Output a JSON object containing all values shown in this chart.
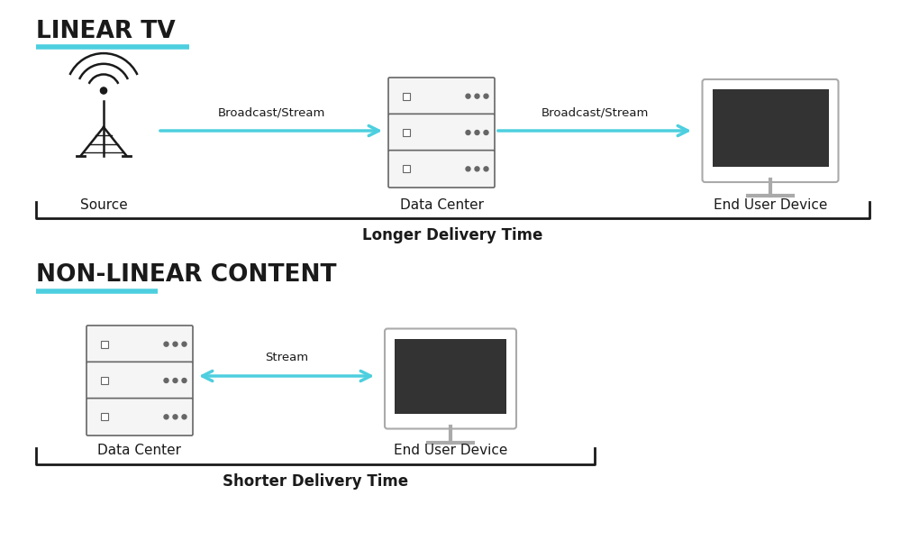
{
  "bg_color": "#ffffff",
  "cyan_color": "#4dcfdf",
  "dark_color": "#1a1a1a",
  "border_color": "#777777",
  "screen_dark": "#333333",
  "section1_title": "LINEAR TV",
  "section2_title": "NON-LINEAR CONTENT",
  "arrow1_label": "Broadcast/Stream",
  "arrow2_label": "Broadcast/Stream",
  "arrow3_label": "Stream",
  "source_label": "Source",
  "dc_label": "Data Center",
  "eud_label": "End User Device",
  "longer_label": "Longer Delivery Time",
  "shorter_label": "Shorter Delivery Time",
  "figw": 10.0,
  "figh": 6.0,
  "dpi": 100
}
